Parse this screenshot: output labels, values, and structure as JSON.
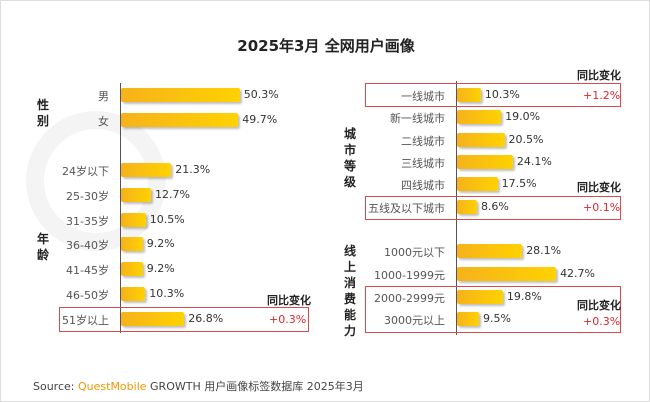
{
  "title": "2025年3月 全网用户画像",
  "chart_data": [
    {
      "type": "bar",
      "orientation": "horizontal",
      "groups": [
        {
          "name": "性别",
          "categories": [
            "男",
            "女"
          ],
          "values": [
            50.3,
            49.7
          ]
        },
        {
          "name": "年龄",
          "categories": [
            "24岁以下",
            "25-30岁",
            "31-35岁",
            "36-40岁",
            "41-45岁",
            "46-50岁",
            "51岁以上"
          ],
          "values": [
            21.3,
            12.7,
            10.5,
            9.2,
            9.2,
            10.3,
            26.8
          ]
        }
      ],
      "value_suffix": "%",
      "highlights": [
        {
          "category": "51岁以上",
          "label": "同比变化",
          "change": "+0.3%"
        }
      ]
    },
    {
      "type": "bar",
      "orientation": "horizontal",
      "groups": [
        {
          "name": "城市等级",
          "categories": [
            "一线城市",
            "新一线城市",
            "二线城市",
            "三线城市",
            "四线城市",
            "五线及以下城市"
          ],
          "values": [
            10.3,
            19.0,
            20.5,
            24.1,
            17.5,
            8.6
          ]
        },
        {
          "name": "线上消费能力",
          "categories": [
            "1000元以下",
            "1000-1999元",
            "2000-2999元",
            "3000元以上"
          ],
          "values": [
            28.1,
            42.7,
            19.8,
            9.5
          ]
        }
      ],
      "value_suffix": "%",
      "highlights": [
        {
          "category": "一线城市",
          "label": "同比变化",
          "change": "+1.2%"
        },
        {
          "category": "五线及以下城市",
          "label": "同比变化",
          "change": "+0.1%"
        },
        {
          "category": "2000-2999元 / 3000元以上",
          "label": "同比变化",
          "change": "+0.3%"
        }
      ]
    }
  ],
  "watermark": "QUESTMOBILE",
  "source": {
    "prefix": "Source:",
    "brand": "QuestMobile",
    "text": "GROWTH 用户画像标签数据库 2025年3月"
  },
  "colors": {
    "bar_start": "#f6b21c",
    "bar_end": "#ffd200",
    "highlight": "#d94a4a",
    "change": "#e0262b"
  }
}
